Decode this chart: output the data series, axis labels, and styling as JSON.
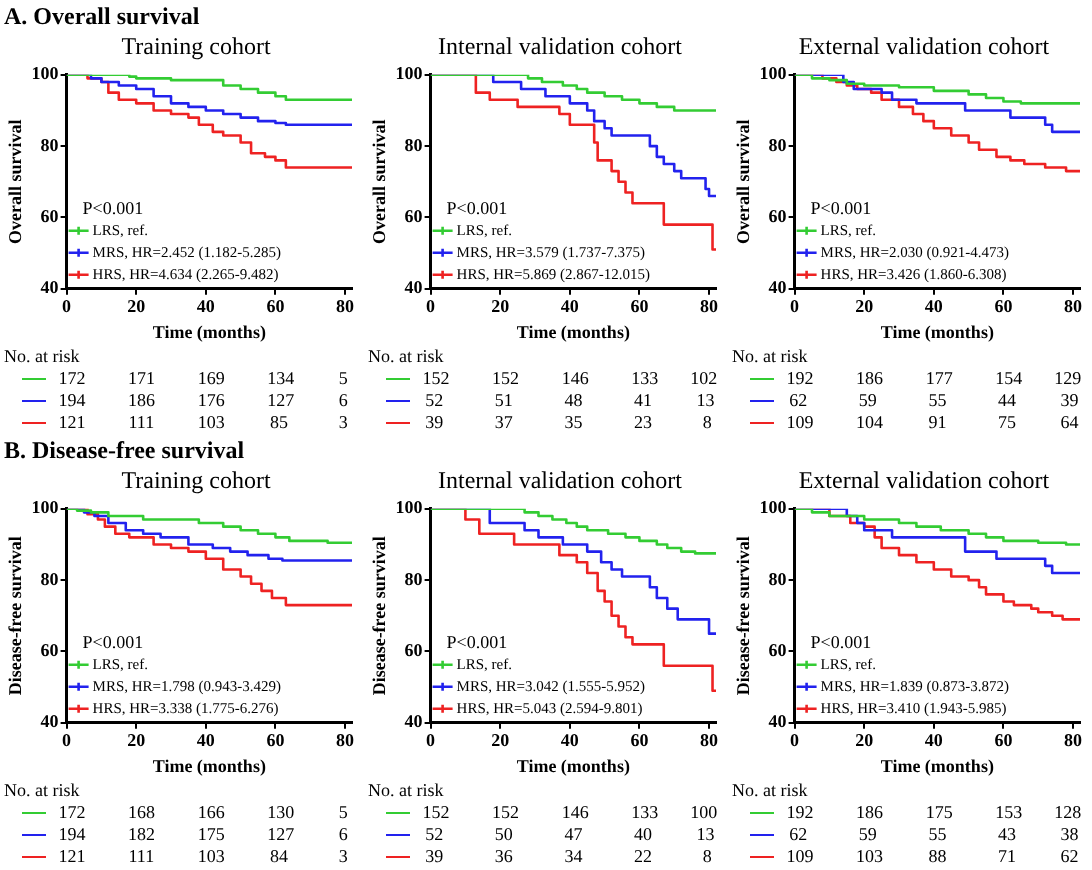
{
  "chart_data": [
    {
      "type": "step",
      "subtitle": "A. Overall survival",
      "title": "Training cohort",
      "xlabel": "Time (months)",
      "ylabel": "Overall survival",
      "xlim": [
        0,
        82
      ],
      "ylim": [
        40,
        100
      ],
      "xticks": [
        0,
        20,
        40,
        60,
        80
      ],
      "yticks": [
        40,
        60,
        80,
        100
      ],
      "legend": "bottom left",
      "series": [
        {
          "name": "LRS, ref.",
          "color": "#33cc33",
          "x": [
            0,
            18,
            20,
            30,
            45,
            50,
            55,
            60,
            63,
            82
          ],
          "values": [
            100,
            99.5,
            99,
            98.5,
            97,
            96,
            95,
            94,
            93,
            93
          ]
        },
        {
          "name": "MRS, HR=2.452 (1.182-5.285)",
          "color": "#2222ee",
          "x": [
            0,
            7,
            10,
            15,
            20,
            25,
            30,
            35,
            40,
            45,
            50,
            55,
            60,
            63,
            82
          ],
          "values": [
            100,
            99,
            98,
            97,
            96,
            94,
            92,
            91,
            90,
            89,
            88,
            87,
            86.5,
            86,
            86
          ]
        },
        {
          "name": "HRS, HR=4.634 (2.265-9.482)",
          "color": "#ee2222",
          "x": [
            0,
            6,
            10,
            12,
            15,
            20,
            25,
            30,
            35,
            38,
            42,
            45,
            50,
            53,
            57,
            60,
            63,
            82
          ],
          "values": [
            100,
            99,
            98,
            95,
            93,
            92,
            90,
            89,
            88,
            86,
            84,
            83,
            81,
            78,
            77,
            76,
            74,
            74
          ]
        }
      ],
      "annotations": [
        "P<0.001",
        "No. at risk",
        "172",
        "171",
        "169",
        "134",
        "5",
        "194",
        "186",
        "176",
        "127",
        "6",
        "121",
        "111",
        "103",
        "85",
        "3"
      ]
    },
    {
      "type": "step",
      "title": "Internal validation cohort",
      "xlabel": "Time (months)",
      "ylabel": "Overall survival",
      "xlim": [
        0,
        82
      ],
      "ylim": [
        40,
        100
      ],
      "xticks": [
        0,
        20,
        40,
        60,
        80
      ],
      "yticks": [
        40,
        60,
        80,
        100
      ],
      "legend": "bottom left",
      "series": [
        {
          "name": "LRS, ref.",
          "color": "#33cc33",
          "x": [
            0,
            25,
            28,
            32,
            38,
            42,
            45,
            50,
            55,
            60,
            65,
            70,
            82
          ],
          "values": [
            100,
            100,
            99,
            98,
            97,
            96,
            95,
            94,
            93,
            92,
            91,
            90,
            90
          ]
        },
        {
          "name": "MRS, HR=3.579 (1.737-7.375)",
          "color": "#2222ee",
          "x": [
            0,
            18,
            26,
            33,
            40,
            45,
            47,
            50,
            52,
            63,
            65,
            67,
            70,
            72,
            79,
            80,
            82
          ],
          "values": [
            100,
            98,
            96,
            94,
            92,
            90,
            87,
            85,
            83,
            80,
            77,
            75,
            73,
            71,
            68,
            66,
            66
          ]
        },
        {
          "name": "HRS, HR=5.869 (2.867-12.015)",
          "color": "#ee2222",
          "x": [
            0,
            13,
            17,
            25,
            37,
            40,
            47,
            48,
            52,
            54,
            56,
            58,
            67,
            81,
            82
          ],
          "values": [
            100,
            95,
            93,
            91,
            89,
            86,
            81,
            76,
            73,
            70,
            67,
            64,
            58,
            51,
            51
          ]
        }
      ],
      "annotations": [
        "P<0.001",
        "No. at risk",
        "152",
        "152",
        "146",
        "133",
        "102",
        "52",
        "51",
        "48",
        "41",
        "13",
        "39",
        "37",
        "35",
        "23",
        "8"
      ]
    },
    {
      "type": "step",
      "title": "External validation cohort",
      "xlabel": "Time (months)",
      "ylabel": "Overall survival",
      "xlim": [
        0,
        82
      ],
      "ylim": [
        40,
        100
      ],
      "xticks": [
        0,
        20,
        40,
        60,
        80
      ],
      "yticks": [
        40,
        60,
        80,
        100
      ],
      "legend": "bottom left",
      "series": [
        {
          "name": "LRS, ref.",
          "color": "#33cc33",
          "x": [
            0,
            5,
            10,
            15,
            20,
            30,
            40,
            50,
            55,
            60,
            65,
            82
          ],
          "values": [
            100,
            99,
            98.5,
            97.5,
            97,
            96.5,
            95.5,
            94.5,
            93.5,
            92.5,
            92,
            92
          ]
        },
        {
          "name": "MRS, HR=2.030 (0.921-4.473)",
          "color": "#2222ee",
          "x": [
            0,
            14,
            17,
            25,
            28,
            35,
            49,
            62,
            72,
            74,
            82
          ],
          "values": [
            100,
            98,
            96,
            95,
            93,
            92,
            90,
            88,
            86,
            84,
            84
          ]
        },
        {
          "name": "HRS, HR=3.426 (1.860-6.308)",
          "color": "#ee2222",
          "x": [
            0,
            8,
            12,
            15,
            18,
            22,
            25,
            30,
            34,
            37,
            40,
            45,
            50,
            53,
            58,
            62,
            66,
            72,
            78,
            82
          ],
          "values": [
            100,
            99,
            98,
            97,
            96,
            95,
            93,
            91,
            89,
            87,
            85,
            83,
            81,
            79,
            77,
            76,
            75,
            74,
            73,
            73
          ]
        }
      ],
      "annotations": [
        "P<0.001",
        "No. at risk",
        "192",
        "186",
        "177",
        "154",
        "129",
        "62",
        "59",
        "55",
        "44",
        "39",
        "109",
        "104",
        "91",
        "75",
        "64"
      ]
    },
    {
      "type": "step",
      "subtitle": "B. Disease-free survival",
      "title": "Training cohort",
      "xlabel": "Time (months)",
      "ylabel": "Disease-free survival",
      "xlim": [
        0,
        82
      ],
      "ylim": [
        40,
        100
      ],
      "xticks": [
        0,
        20,
        40,
        60,
        80
      ],
      "yticks": [
        40,
        60,
        80,
        100
      ],
      "legend": "bottom left",
      "series": [
        {
          "name": "LRS, ref.",
          "color": "#33cc33",
          "x": [
            0,
            3,
            7,
            12,
            22,
            38,
            45,
            50,
            55,
            60,
            64,
            75,
            82
          ],
          "values": [
            100,
            99.5,
            99,
            98,
            97,
            96,
            95,
            94,
            93,
            92,
            91,
            90.5,
            90.5
          ]
        },
        {
          "name": "MRS, HR=1.798 (0.943-3.429)",
          "color": "#2222ee",
          "x": [
            0,
            5,
            8,
            12,
            17,
            22,
            27,
            35,
            42,
            47,
            52,
            58,
            62,
            82
          ],
          "values": [
            100,
            99,
            98,
            96,
            94,
            93,
            92,
            90,
            89,
            88,
            87,
            86,
            85.5,
            85.5
          ]
        },
        {
          "name": "HRS, HR=3.338 (1.775-6.276)",
          "color": "#ee2222",
          "x": [
            0,
            6,
            9,
            11,
            14,
            18,
            25,
            30,
            35,
            40,
            45,
            50,
            53,
            56,
            59,
            63,
            82
          ],
          "values": [
            100,
            98.5,
            97,
            95,
            93,
            92,
            90,
            89,
            88,
            86,
            83,
            81,
            79,
            77,
            75,
            73,
            73
          ]
        }
      ],
      "annotations": [
        "P<0.001",
        "No. at risk",
        "172",
        "168",
        "166",
        "130",
        "5",
        "194",
        "182",
        "175",
        "127",
        "6",
        "121",
        "111",
        "103",
        "84",
        "3"
      ]
    },
    {
      "type": "step",
      "title": "Internal validation cohort",
      "xlabel": "Time (months)",
      "ylabel": "Disease-free survival",
      "xlim": [
        0,
        82
      ],
      "ylim": [
        40,
        100
      ],
      "xticks": [
        0,
        20,
        40,
        60,
        80
      ],
      "yticks": [
        40,
        60,
        80,
        100
      ],
      "legend": "bottom left",
      "series": [
        {
          "name": "LRS, ref.",
          "color": "#33cc33",
          "x": [
            0,
            25,
            27,
            31,
            35,
            39,
            42,
            45,
            51,
            56,
            60,
            65,
            68,
            72,
            76,
            82
          ],
          "values": [
            100,
            100,
            99,
            98,
            97,
            96,
            95,
            94,
            93,
            92,
            91,
            90,
            89,
            88,
            87.5,
            87.5
          ]
        },
        {
          "name": "MRS, HR=3.042 (1.555-5.952)",
          "color": "#2222ee",
          "x": [
            0,
            17,
            27,
            31,
            38,
            45,
            49,
            52,
            55,
            63,
            65,
            68,
            71,
            80,
            82
          ],
          "values": [
            100,
            96,
            94,
            92,
            90,
            88,
            85,
            83,
            81,
            78,
            75,
            72,
            69,
            65,
            65
          ]
        },
        {
          "name": "HRS, HR=5.043 (2.594-9.801)",
          "color": "#ee2222",
          "x": [
            0,
            10,
            14,
            24,
            37,
            42,
            45,
            48,
            50,
            52,
            54,
            56,
            58,
            67,
            81,
            82
          ],
          "values": [
            100,
            97,
            93,
            90,
            87,
            85,
            82,
            77,
            74,
            70,
            67,
            64,
            62,
            56,
            49,
            49
          ]
        }
      ],
      "annotations": [
        "P<0.001",
        "No. at risk",
        "152",
        "152",
        "146",
        "133",
        "100",
        "52",
        "50",
        "47",
        "40",
        "13",
        "39",
        "36",
        "34",
        "22",
        "8"
      ]
    },
    {
      "type": "step",
      "title": "External validation cohort",
      "xlabel": "Time (months)",
      "ylabel": "Disease-free survival",
      "xlim": [
        0,
        82
      ],
      "ylim": [
        40,
        100
      ],
      "xticks": [
        0,
        20,
        40,
        60,
        80
      ],
      "yticks": [
        40,
        60,
        80,
        100
      ],
      "legend": "bottom left",
      "series": [
        {
          "name": "LRS, ref.",
          "color": "#33cc33",
          "x": [
            0,
            5,
            10,
            20,
            30,
            35,
            42,
            50,
            55,
            60,
            70,
            78,
            82
          ],
          "values": [
            100,
            99,
            98,
            97,
            96,
            95,
            94,
            93,
            92,
            91,
            90.5,
            90,
            90
          ]
        },
        {
          "name": "MRS, HR=1.839 (0.873-3.872)",
          "color": "#2222ee",
          "x": [
            0,
            15,
            18,
            20,
            28,
            49,
            58,
            72,
            74,
            82
          ],
          "values": [
            100,
            98,
            96,
            94,
            92,
            88,
            86,
            84,
            82,
            82
          ]
        },
        {
          "name": "HRS, HR=3.410 (1.943-5.985)",
          "color": "#ee2222",
          "x": [
            0,
            10,
            16,
            20,
            23,
            25,
            30,
            35,
            40,
            45,
            50,
            53,
            55,
            60,
            63,
            68,
            70,
            74,
            77,
            82
          ],
          "values": [
            100,
            98,
            96,
            95,
            92,
            89,
            87,
            85,
            83,
            81,
            80,
            78,
            76,
            74,
            73,
            72,
            71,
            70,
            69,
            69
          ]
        }
      ],
      "annotations": [
        "P<0.001",
        "No. at risk",
        "192",
        "186",
        "175",
        "153",
        "128",
        "62",
        "59",
        "55",
        "43",
        "38",
        "109",
        "103",
        "88",
        "71",
        "62"
      ]
    }
  ]
}
